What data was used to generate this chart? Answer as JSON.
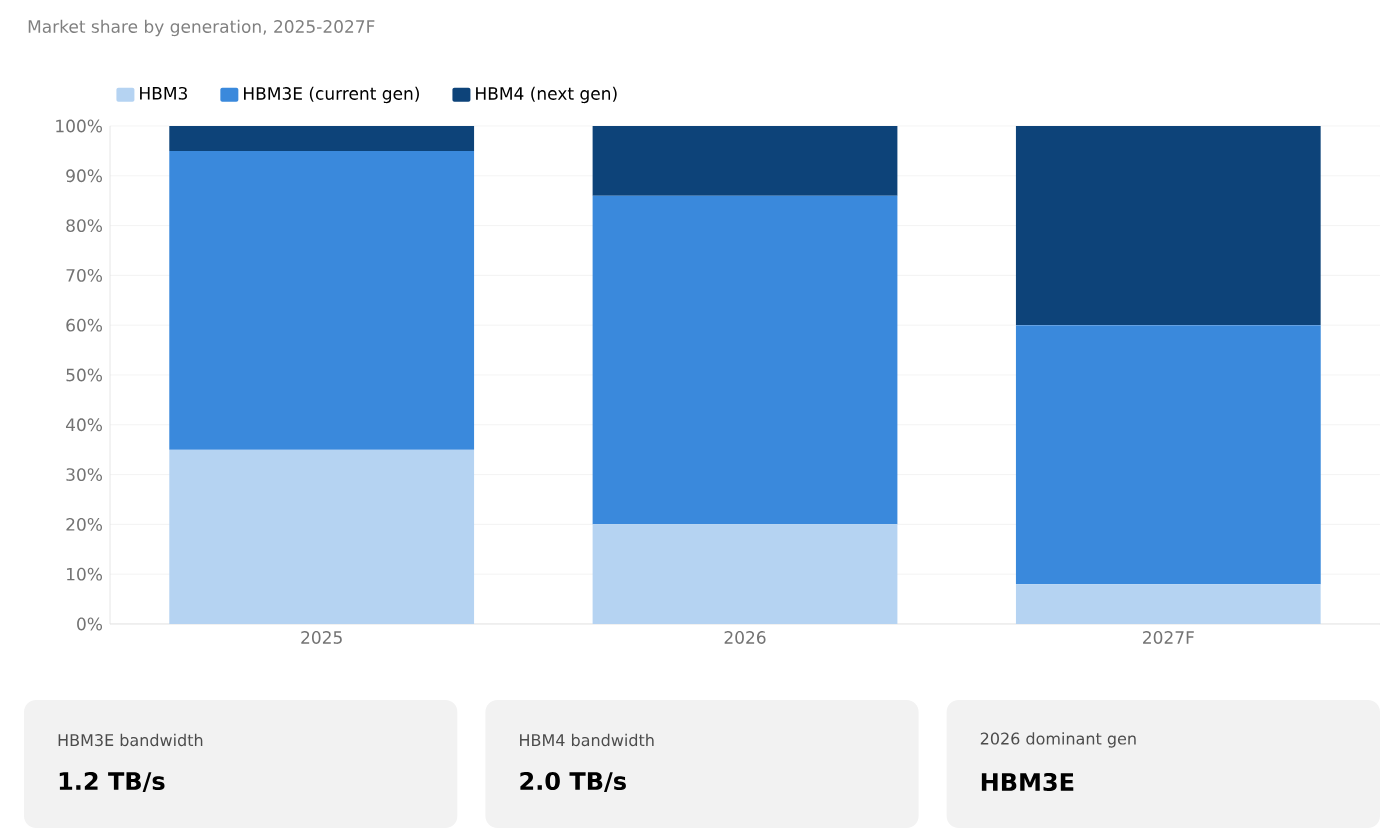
{
  "chart_data": {
    "type": "bar",
    "stacked": true,
    "subtitle": "Market share by generation, 2025-2027F",
    "categories": [
      "2025",
      "2026",
      "2027F"
    ],
    "series": [
      {
        "name": "HBM3",
        "color": "#b5d3f2",
        "values": [
          35,
          20,
          8
        ]
      },
      {
        "name": "HBM3E (current gen)",
        "color": "#3a89dc",
        "values": [
          60,
          66,
          52
        ]
      },
      {
        "name": "HBM4 (next gen)",
        "color": "#0d4379",
        "values": [
          5,
          14,
          40
        ]
      }
    ],
    "ylim": [
      0,
      100
    ],
    "yticks": [
      {
        "value": 0,
        "label": "0%"
      },
      {
        "value": 10,
        "label": "10%"
      },
      {
        "value": 20,
        "label": "20%"
      },
      {
        "value": 30,
        "label": "30%"
      },
      {
        "value": 40,
        "label": "40%"
      },
      {
        "value": 50,
        "label": "50%"
      },
      {
        "value": 60,
        "label": "60%"
      },
      {
        "value": 70,
        "label": "70%"
      },
      {
        "value": 80,
        "label": "80%"
      },
      {
        "value": 90,
        "label": "90%"
      },
      {
        "value": 100,
        "label": "100%"
      }
    ],
    "grid": "y",
    "legend": "top left",
    "annotations": [
      "HBM3E bandwidth",
      "1.2 TB/s",
      "HBM4 bandwidth",
      "2.0 TB/s",
      "2026 dominant gen",
      "HBM3E"
    ]
  }
}
